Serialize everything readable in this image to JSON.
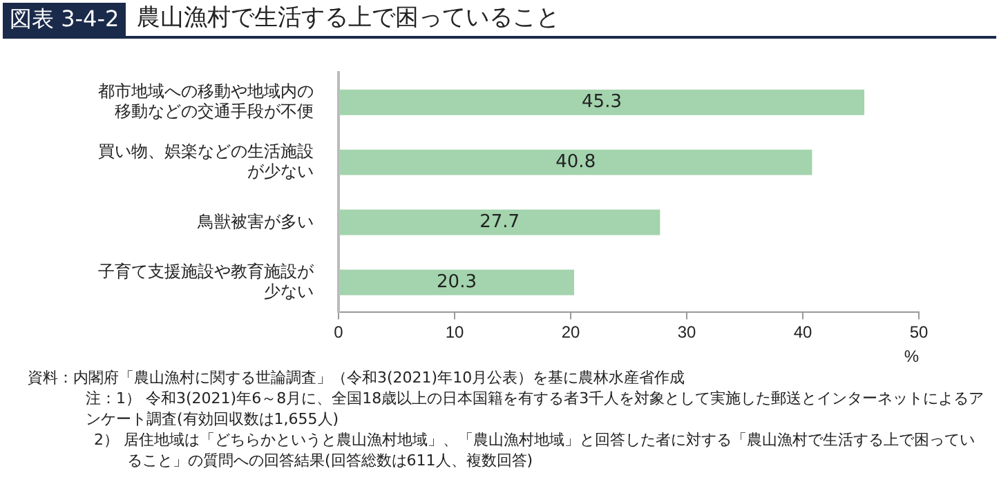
{
  "chart_data": {
    "type": "bar",
    "orientation": "horizontal",
    "title": "農山漁村で生活する上で困っていること",
    "categories": [
      "都市地域への移動や地域内の移動などの交通手段が不便",
      "買い物、娯楽などの生活施設が少ない",
      "鳥獣被害が多い",
      "子育て支援施設や教育施設が少ない"
    ],
    "values": [
      45.3,
      40.8,
      27.7,
      20.3
    ],
    "color": "#a3d4ad",
    "data_labels": true,
    "xlim": [
      0,
      50
    ],
    "xticks": [
      0,
      10,
      20,
      30,
      40,
      50
    ],
    "xlabel": "%",
    "annotations": [
      "図表 3-4-2",
      "資料：内閣府「農山漁村に関する世論調査」（令和3(2021)年10月公表）を基に農林水産省作成",
      "注：1） 令和3(2021)年6～8月に、全国18歳以上の日本国籍を有する者3千人を対象として実施した郵送とインターネットによるアンケート調査(有効回収数は1,655人)",
      "2） 居住地域は「どちらかというと農山漁村地域」、「農山漁村地域」と回答した者に対する「農山漁村で生活する上で困っていること」の質問への回答結果(回答総数は611人、複数回答)"
    ]
  }
}
